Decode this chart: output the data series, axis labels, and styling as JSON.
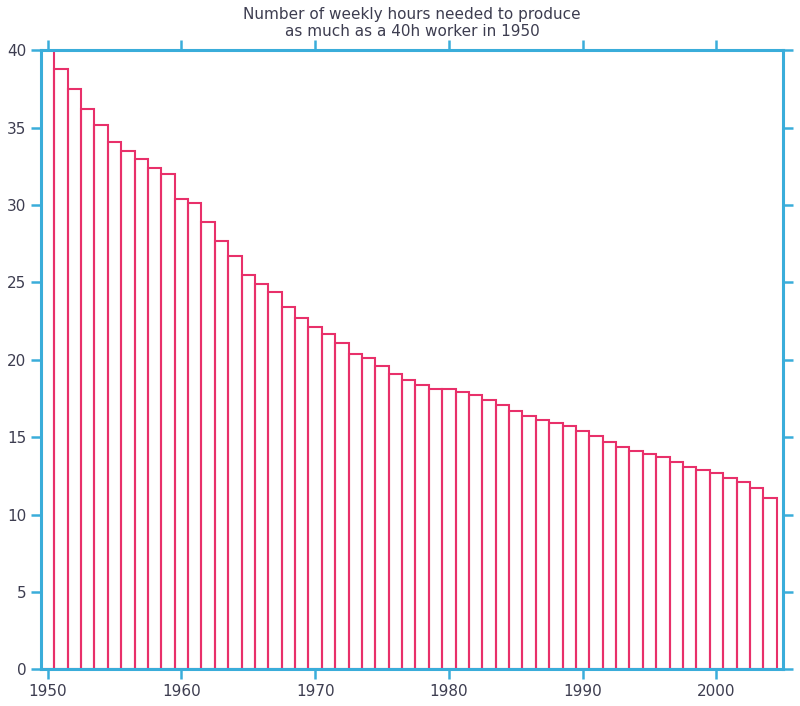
{
  "title": "Number of weekly hours needed to produce\nas much as a 40h worker in 1950",
  "years": [
    1950,
    1951,
    1952,
    1953,
    1954,
    1955,
    1956,
    1957,
    1958,
    1959,
    1960,
    1961,
    1962,
    1963,
    1964,
    1965,
    1966,
    1967,
    1968,
    1969,
    1970,
    1971,
    1972,
    1973,
    1974,
    1975,
    1976,
    1977,
    1978,
    1979,
    1980,
    1981,
    1982,
    1983,
    1984,
    1985,
    1986,
    1987,
    1988,
    1989,
    1990,
    1991,
    1992,
    1993,
    1994,
    1995,
    1996,
    1997,
    1998,
    1999,
    2000,
    2001,
    2002,
    2003,
    2004
  ],
  "values": [
    40.0,
    38.8,
    37.5,
    36.2,
    35.2,
    34.1,
    33.5,
    33.0,
    32.4,
    32.0,
    30.4,
    30.1,
    28.9,
    27.7,
    26.7,
    25.5,
    24.9,
    24.4,
    23.4,
    22.7,
    22.1,
    21.7,
    21.1,
    20.4,
    20.1,
    19.6,
    19.1,
    18.7,
    18.4,
    18.1,
    18.1,
    17.9,
    17.7,
    17.4,
    17.1,
    16.7,
    16.4,
    16.1,
    15.9,
    15.7,
    15.4,
    15.1,
    14.7,
    14.4,
    14.1,
    13.9,
    13.7,
    13.4,
    13.1,
    12.9,
    12.7,
    12.4,
    12.1,
    11.7,
    11.1
  ],
  "bar_color": "none",
  "bar_edge_color": "#E8306A",
  "spine_color": "#3AADDA",
  "tick_color": "#3AADDA",
  "title_color": "#3D3D50",
  "label_color": "#3D3D50",
  "background_color": "#FFFFFF",
  "ylim": [
    0,
    40
  ],
  "yticks": [
    0,
    5,
    10,
    15,
    20,
    25,
    30,
    35,
    40
  ],
  "xticks": [
    1950,
    1960,
    1970,
    1980,
    1990,
    2000
  ],
  "title_fontsize": 11,
  "tick_fontsize": 11,
  "bar_linewidth": 1.5
}
